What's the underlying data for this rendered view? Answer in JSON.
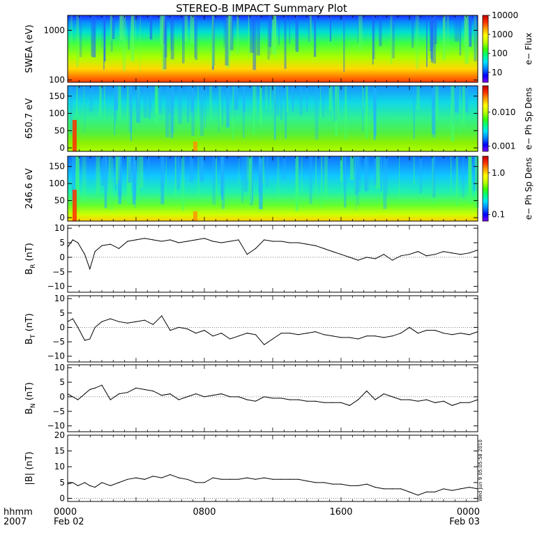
{
  "title": "STEREO-B IMPACT Summary Plot",
  "stamp": "Wed Jun  9 05:05:58 2010",
  "time_axis": {
    "row_labels": [
      "hhmm",
      "2007"
    ],
    "ticks": [
      {
        "hours": 0,
        "label": "0000",
        "date": "Feb 02"
      },
      {
        "hours": 8,
        "label": "0800",
        "date": ""
      },
      {
        "hours": 16,
        "label": "1600",
        "date": ""
      },
      {
        "hours": 24,
        "label": "0000",
        "date": "Feb 03"
      }
    ],
    "range_hours": [
      0,
      24
    ]
  },
  "chart_data": [
    {
      "type": "heatmap",
      "ylabel": "SWEA (eV)",
      "yscale": "log",
      "ylim": [
        90,
        2000
      ],
      "yticks": [
        {
          "v": 100,
          "label": "100"
        },
        {
          "v": 1000,
          "label": "1000"
        }
      ],
      "colorbar": {
        "label": "e− Flux",
        "scale": "log",
        "range": [
          3,
          10000
        ],
        "ticks": [
          {
            "v": 10,
            "label": "10"
          },
          {
            "v": 100,
            "label": "100"
          },
          {
            "v": 1000,
            "label": "1000"
          },
          {
            "v": 10000,
            "label": "10000"
          }
        ]
      }
    },
    {
      "type": "heatmap",
      "ylabel": "650.7 eV",
      "ylim": [
        -10,
        180
      ],
      "yticks": [
        {
          "v": 0,
          "label": "0"
        },
        {
          "v": 50,
          "label": "50"
        },
        {
          "v": 100,
          "label": "100"
        },
        {
          "v": 150,
          "label": "150"
        }
      ],
      "colorbar": {
        "label": "e− Ph Sp Dens",
        "scale": "log",
        "range": [
          0.0007,
          0.06
        ],
        "ticks": [
          {
            "v": 0.001,
            "label": "0.001"
          },
          {
            "v": 0.01,
            "label": "0.010"
          }
        ]
      }
    },
    {
      "type": "heatmap",
      "ylabel": "246.6 eV",
      "ylim": [
        -10,
        180
      ],
      "yticks": [
        {
          "v": 0,
          "label": "0"
        },
        {
          "v": 50,
          "label": "50"
        },
        {
          "v": 100,
          "label": "100"
        },
        {
          "v": 150,
          "label": "150"
        }
      ],
      "colorbar": {
        "label": "e− Ph Sp Dens",
        "scale": "log",
        "range": [
          0.07,
          2.5
        ],
        "ticks": [
          {
            "v": 0.1,
            "label": "0.1"
          },
          {
            "v": 1,
            "label": "1.0"
          }
        ]
      }
    },
    {
      "type": "line",
      "ylabel": "B",
      "ylabel_sub": "R",
      "ylabel_unit": " (nT)",
      "ylim": [
        -12,
        11
      ],
      "yticks": [
        {
          "v": -10,
          "label": "−10"
        },
        {
          "v": -5,
          "label": "−5"
        },
        {
          "v": 0,
          "label": "0"
        },
        {
          "v": 5,
          "label": "5"
        },
        {
          "v": 10,
          "label": "10"
        }
      ],
      "x": [
        0,
        0.3,
        0.6,
        1,
        1.3,
        1.6,
        2,
        2.5,
        3,
        3.5,
        4,
        4.5,
        5,
        5.5,
        6,
        6.5,
        7,
        7.5,
        8,
        8.5,
        9,
        9.5,
        10,
        10.5,
        11,
        11.5,
        12,
        12.5,
        13,
        13.5,
        14,
        14.5,
        15,
        15.5,
        16,
        16.5,
        17,
        17.5,
        18,
        18.5,
        19,
        19.5,
        20,
        20.5,
        21,
        21.5,
        22,
        22.5,
        23,
        23.5,
        24
      ],
      "y": [
        3.5,
        6,
        5,
        1,
        -4,
        2,
        4,
        4.5,
        3,
        5.5,
        6,
        6.5,
        6,
        5.5,
        6,
        5,
        5.5,
        6,
        6.5,
        5.5,
        5,
        5.5,
        6,
        1,
        3,
        6,
        5.5,
        5.5,
        5,
        5,
        4.5,
        4,
        3,
        2,
        1,
        0,
        -1,
        0,
        -0.5,
        1,
        -1,
        0.5,
        1,
        2,
        0.5,
        1,
        2,
        1.5,
        1,
        1.5,
        2.5
      ]
    },
    {
      "type": "line",
      "ylabel": "B",
      "ylabel_sub": "T",
      "ylabel_unit": " (nT)",
      "ylim": [
        -12,
        11
      ],
      "yticks": [
        {
          "v": -10,
          "label": "−10"
        },
        {
          "v": -5,
          "label": "−5"
        },
        {
          "v": 0,
          "label": "0"
        },
        {
          "v": 5,
          "label": "5"
        },
        {
          "v": 10,
          "label": "10"
        }
      ],
      "x": [
        0,
        0.3,
        0.6,
        1,
        1.3,
        1.6,
        2,
        2.5,
        3,
        3.5,
        4,
        4.5,
        5,
        5.5,
        6,
        6.5,
        7,
        7.5,
        8,
        8.5,
        9,
        9.5,
        10,
        10.5,
        11,
        11.5,
        12,
        12.5,
        13,
        13.5,
        14,
        14.5,
        15,
        15.5,
        16,
        16.5,
        17,
        17.5,
        18,
        18.5,
        19,
        19.5,
        20,
        20.5,
        21,
        21.5,
        22,
        22.5,
        23,
        23.5,
        24
      ],
      "y": [
        2,
        3,
        0,
        -4.5,
        -4,
        0,
        2,
        3,
        2,
        1.5,
        2,
        2.5,
        1,
        4,
        -1,
        0,
        -0.5,
        -2,
        -1,
        -3,
        -2,
        -4,
        -3,
        -2,
        -2.5,
        -6,
        -4,
        -2,
        -2,
        -2.5,
        -2,
        -1.5,
        -2.5,
        -3,
        -3.5,
        -3.5,
        -4,
        -3,
        -3,
        -3.5,
        -3,
        -2,
        0,
        -2,
        -1,
        -1,
        -2,
        -2.5,
        -2,
        -2.5,
        -1.5
      ]
    },
    {
      "type": "line",
      "ylabel": "B",
      "ylabel_sub": "N",
      "ylabel_unit": " (nT)",
      "ylim": [
        -12,
        11
      ],
      "yticks": [
        {
          "v": -10,
          "label": "−10"
        },
        {
          "v": -5,
          "label": "−5"
        },
        {
          "v": 0,
          "label": "0"
        },
        {
          "v": 5,
          "label": "5"
        },
        {
          "v": 10,
          "label": "10"
        }
      ],
      "x": [
        0,
        0.3,
        0.6,
        1,
        1.3,
        1.6,
        2,
        2.5,
        3,
        3.5,
        4,
        4.5,
        5,
        5.5,
        6,
        6.5,
        7,
        7.5,
        8,
        8.5,
        9,
        9.5,
        10,
        10.5,
        11,
        11.5,
        12,
        12.5,
        13,
        13.5,
        14,
        14.5,
        15,
        15.5,
        16,
        16.5,
        17,
        17.5,
        18,
        18.5,
        19,
        19.5,
        20,
        20.5,
        21,
        21.5,
        22,
        22.5,
        23,
        23.5,
        24
      ],
      "y": [
        1,
        0,
        -1,
        1,
        2.5,
        3,
        4,
        -1,
        1,
        1.5,
        3,
        2.5,
        2,
        0.5,
        1,
        -1,
        0,
        1,
        0,
        0.5,
        1,
        0,
        0,
        -1,
        -1.5,
        0,
        -0.5,
        -0.5,
        -1,
        -1,
        -1.5,
        -1.5,
        -2,
        -2,
        -2,
        -3,
        -1,
        2,
        -1,
        1,
        0,
        -1,
        -1,
        -1.5,
        -1,
        -2,
        -1.5,
        -3,
        -2,
        -2,
        -1
      ]
    },
    {
      "type": "line",
      "ylabel": "|B| (nT)",
      "ylim": [
        -1,
        20
      ],
      "yticks": [
        {
          "v": 0,
          "label": "0"
        },
        {
          "v": 5,
          "label": "5"
        },
        {
          "v": 10,
          "label": "10"
        },
        {
          "v": 15,
          "label": "15"
        },
        {
          "v": 20,
          "label": "20"
        }
      ],
      "x": [
        0,
        0.3,
        0.6,
        1,
        1.3,
        1.6,
        2,
        2.5,
        3,
        3.5,
        4,
        4.5,
        5,
        5.5,
        6,
        6.5,
        7,
        7.5,
        8,
        8.5,
        9,
        9.5,
        10,
        10.5,
        11,
        11.5,
        12,
        12.5,
        13,
        13.5,
        14,
        14.5,
        15,
        15.5,
        16,
        16.5,
        17,
        17.5,
        18,
        18.5,
        19,
        19.5,
        20,
        20.5,
        21,
        21.5,
        22,
        22.5,
        23,
        23.5,
        24
      ],
      "y": [
        4.5,
        5,
        4,
        5,
        4,
        3.5,
        5,
        4,
        5,
        6,
        6.5,
        6,
        7,
        6.5,
        7.5,
        6.5,
        6,
        5,
        5,
        6.5,
        6,
        6,
        6,
        6.5,
        6,
        6.5,
        6,
        6,
        6,
        6,
        5.5,
        5,
        5,
        4.5,
        4.5,
        4,
        4,
        4.5,
        3.5,
        3,
        3,
        3,
        2,
        1,
        2,
        2,
        3,
        2.5,
        3,
        3.5,
        3
      ]
    }
  ]
}
